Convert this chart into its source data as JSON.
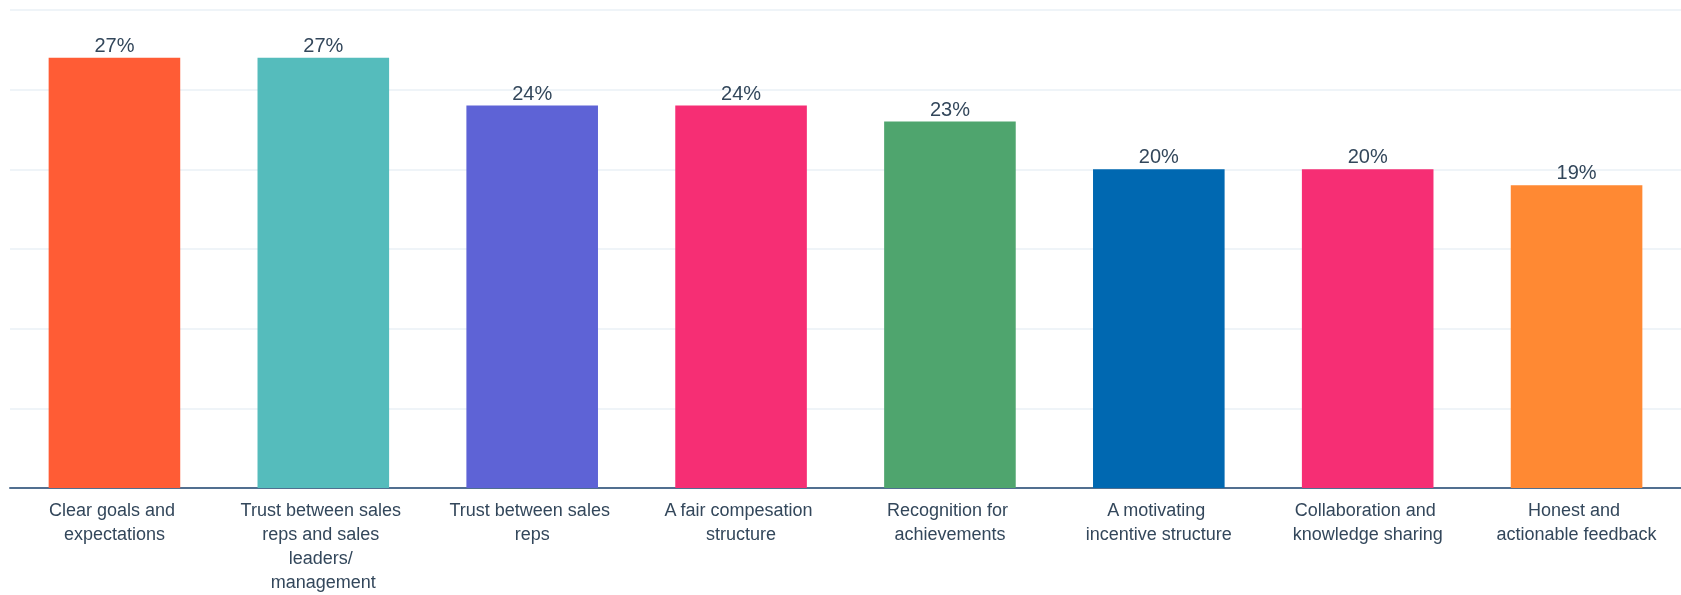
{
  "chart_data": {
    "type": "bar",
    "categories": [
      "Clear goals and expectations",
      "Trust between sales reps and sales leaders/ management",
      "Trust between sales reps",
      "A fair compesation structure",
      "Recognition for achievements",
      "A motivating incentive structure",
      "Collaboration and knowledge sharing",
      "Honest and actionable feedback"
    ],
    "values": [
      27,
      27,
      24,
      24,
      23,
      20,
      20,
      19
    ],
    "colors": [
      "#ff5c35",
      "#55bcbc",
      "#5e63d6",
      "#f62e74",
      "#4fa56e",
      "#0068b1",
      "#f62e74",
      "#ff8933"
    ],
    "value_labels": [
      "27%",
      "27%",
      "24%",
      "24%",
      "23%",
      "20%",
      "20%",
      "19%"
    ],
    "ylim": [
      0,
      30
    ],
    "yticks": [
      {
        "value": 0,
        "label": null
      },
      {
        "value": 5,
        "label": null
      },
      {
        "value": 10,
        "label": null
      },
      {
        "value": 15,
        "label": null
      },
      {
        "value": 20,
        "label": null
      },
      {
        "value": 25,
        "label": null
      },
      {
        "value": 30,
        "label": null
      }
    ],
    "grid": true,
    "tick_labels": "x"
  }
}
